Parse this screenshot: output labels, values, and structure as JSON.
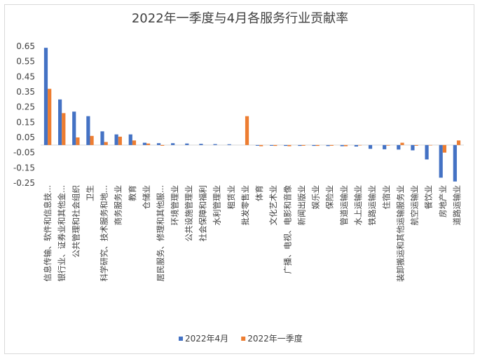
{
  "chart_data": {
    "type": "bar",
    "title": "2022年一季度与4月各服务行业贡献率",
    "xlabel": "",
    "ylabel": "",
    "ylim": [
      -0.25,
      0.65
    ],
    "yticks": [
      "0.65",
      "0.55",
      "0.45",
      "0.35",
      "0.25",
      "0.15",
      "0.05",
      "-0.05",
      "-0.15",
      "-0.25"
    ],
    "grid": false,
    "legend_position": "bottom",
    "categories": [
      "信息传输、软件和信息技...",
      "银行业、证券业和其他金...",
      "公共管理和社会组织",
      "卫生",
      "科学研究、技术服务和地...",
      "商务服务业",
      "教育",
      "仓储业",
      "居民服务、修理和其他服...",
      "环境管理业",
      "公共设施管理业",
      "社会保障和福利",
      "水利管理业",
      "租赁业",
      "批发零售业",
      "体育",
      "文化艺术业",
      "广播、电视、电影和音像",
      "新闻出版业",
      "娱乐业",
      "保险业",
      "管道运输业",
      "水上运输业",
      "铁路运输业",
      "住宿业",
      "装卸搬运和其他运输服务业",
      "航空运输业",
      "餐饮业",
      "房地产业",
      "道路运输业"
    ],
    "series": [
      {
        "name": "2022年4月",
        "color": "#4472c4",
        "values": [
          0.64,
          0.3,
          0.22,
          0.19,
          0.09,
          0.07,
          0.07,
          0.015,
          0.012,
          0.012,
          0.01,
          0.008,
          0.006,
          0.005,
          0.0,
          -0.005,
          -0.005,
          -0.006,
          -0.006,
          -0.006,
          -0.007,
          -0.008,
          -0.01,
          -0.025,
          -0.028,
          -0.03,
          -0.035,
          -0.095,
          -0.215,
          -0.24
        ]
      },
      {
        "name": "2022年一季度",
        "color": "#ed7d31",
        "values": [
          0.37,
          0.21,
          0.05,
          0.06,
          0.02,
          0.055,
          0.03,
          0.01,
          -0.005,
          0.0,
          0.0,
          0.0,
          0.0,
          0.0,
          0.19,
          -0.008,
          -0.006,
          -0.008,
          -0.005,
          -0.006,
          -0.005,
          -0.008,
          -0.003,
          0.0,
          -0.004,
          0.015,
          -0.005,
          -0.003,
          -0.05,
          0.03
        ]
      }
    ]
  }
}
